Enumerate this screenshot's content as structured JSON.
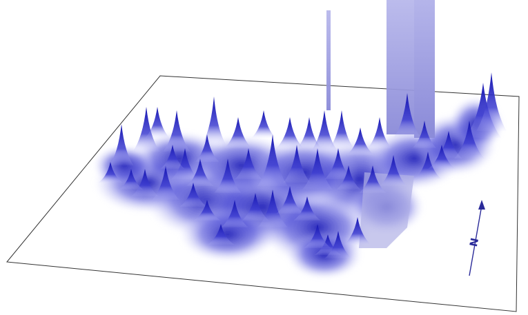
{
  "figure": {
    "type": "3d-density-surface-map",
    "surface_color": "#1f1fb8",
    "surface_light_color": "#c8c8ff",
    "tall_column_color": "#9d9de0",
    "frame_color": "#333333"
  },
  "north_arrow": {
    "label": "N",
    "color": "#2a2a99"
  }
}
